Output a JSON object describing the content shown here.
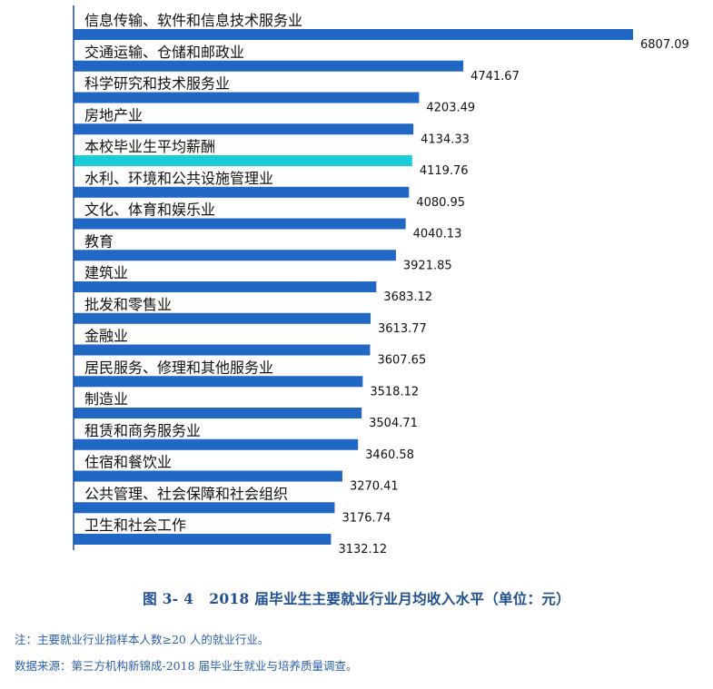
{
  "chart_data": {
    "type": "bar",
    "orientation": "horizontal",
    "categories": [
      "信息传输、软件和信息技术服务业",
      "交通运输、仓储和邮政业",
      "科学研究和技术服务业",
      "房地产业",
      "本校毕业生平均薪酬",
      "水利、环境和公共设施管理业",
      "文化、体育和娱乐业",
      "教育",
      "建筑业",
      "批发和零售业",
      "金融业",
      "居民服务、修理和其他服务业",
      "制造业",
      "租赁和商务服务业",
      "住宿和餐饮业",
      "公共管理、社会保障和社会组织",
      "卫生和社会工作"
    ],
    "values": [
      6807.09,
      4741.67,
      4203.49,
      4134.33,
      4119.76,
      4080.95,
      4040.13,
      3921.85,
      3683.12,
      3613.77,
      3607.65,
      3518.12,
      3504.71,
      3460.58,
      3270.41,
      3176.74,
      3132.12
    ],
    "value_labels": [
      "6807.09",
      "4741.67",
      "4203.49",
      "4134.33",
      "4119.76",
      "4080.95",
      "4040.13",
      "3921.85",
      "3683.12",
      "3613.77",
      "3607.65",
      "3518.12",
      "3504.71",
      "3460.58",
      "3270.41",
      "3176.74",
      "3132.12"
    ],
    "highlight_index": 4,
    "colors": {
      "bar": "#2167c4",
      "highlight": "#19cdd6",
      "axis": "#1f4f8f"
    },
    "xlim": [
      0,
      6807.09
    ],
    "grid": false,
    "legend": "none"
  },
  "caption": {
    "number": "图 3- 4",
    "title": "2018 届毕业生主要就业行业月均收入水平（单位：元）"
  },
  "notes": {
    "note": "注：主要就业行业指样本人数≥20 人的就业行业。",
    "source": "数据来源：第三方机构新锦成-2018 届毕业生就业与培养质量调查。"
  }
}
